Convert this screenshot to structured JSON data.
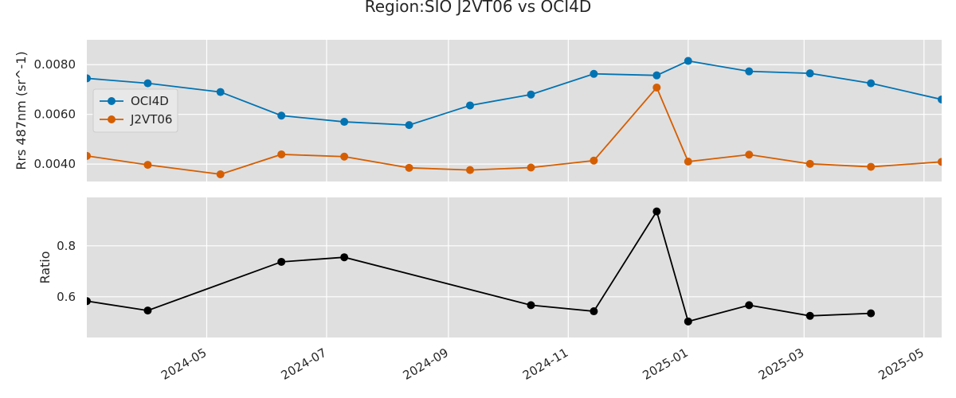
{
  "chart_data": {
    "type": "line",
    "title": "Region:SIO J2VT06 vs OCI4D",
    "x_type": "date",
    "x_range": [
      "2024-03-01",
      "2025-05-10"
    ],
    "x_ticks": [
      "2024-05",
      "2024-07",
      "2024-09",
      "2024-11",
      "2025-01",
      "2025-03",
      "2025-05"
    ],
    "grid": true,
    "panels": [
      {
        "ylabel": "Rrs 487nm (sr^-1)",
        "ylim": [
          0.0033,
          0.009
        ],
        "y_ticks": [
          "0.0040",
          "0.0060",
          "0.0080"
        ],
        "legend": "left",
        "series": [
          {
            "name": "OCI4D",
            "color": "#0173b2",
            "points": [
              [
                "2024-03-01",
                0.00745
              ],
              [
                "2024-04-01",
                0.00725
              ],
              [
                "2024-05-08",
                0.0069
              ],
              [
                "2024-06-08",
                0.00595
              ],
              [
                "2024-07-10",
                0.0057
              ],
              [
                "2024-08-12",
                0.00557
              ],
              [
                "2024-09-12",
                0.00636
              ],
              [
                "2024-10-13",
                0.0068
              ],
              [
                "2024-11-14",
                0.00763
              ],
              [
                "2024-12-16",
                0.00757
              ],
              [
                "2025-01-01",
                0.00815
              ],
              [
                "2025-02-01",
                0.00773
              ],
              [
                "2025-03-04",
                0.00765
              ],
              [
                "2025-04-04",
                0.00725
              ],
              [
                "2025-05-10",
                0.0066
              ]
            ]
          },
          {
            "name": "J2VT06",
            "color": "#d55e00",
            "points": [
              [
                "2024-03-01",
                0.00433
              ],
              [
                "2024-04-01",
                0.00397
              ],
              [
                "2024-05-08",
                0.00359
              ],
              [
                "2024-06-08",
                0.00439
              ],
              [
                "2024-07-10",
                0.0043
              ],
              [
                "2024-08-12",
                0.00385
              ],
              [
                "2024-09-12",
                0.00376
              ],
              [
                "2024-10-13",
                0.00386
              ],
              [
                "2024-11-14",
                0.00414
              ],
              [
                "2024-12-16",
                0.00708
              ],
              [
                "2025-01-01",
                0.0041
              ],
              [
                "2025-02-01",
                0.00438
              ],
              [
                "2025-03-04",
                0.00401
              ],
              [
                "2025-04-04",
                0.00389
              ],
              [
                "2025-05-10",
                0.00409
              ]
            ]
          }
        ]
      },
      {
        "ylabel": "Ratio",
        "ylim": [
          0.44,
          0.99
        ],
        "y_ticks": [
          "0.6",
          "0.8"
        ],
        "series": [
          {
            "color": "#000000",
            "points": [
              [
                "2024-03-01",
                0.583
              ],
              [
                "2024-04-01",
                0.546
              ],
              [
                "2024-06-08",
                0.737
              ],
              [
                "2024-07-10",
                0.755
              ],
              [
                "2024-10-13",
                0.567
              ],
              [
                "2024-11-14",
                0.543
              ],
              [
                "2024-12-16",
                0.935
              ],
              [
                "2025-01-01",
                0.503
              ],
              [
                "2025-02-01",
                0.567
              ],
              [
                "2025-03-04",
                0.525
              ],
              [
                "2025-04-04",
                0.535
              ]
            ]
          }
        ]
      }
    ]
  }
}
